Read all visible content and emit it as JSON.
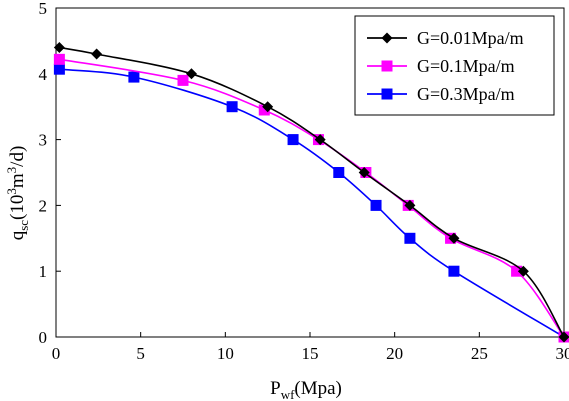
{
  "chart_data": {
    "type": "line",
    "xlabel": "P_wf(Mpa)",
    "ylabel": "q_sc(10^3m^3/d)",
    "xlim": [
      0,
      30
    ],
    "ylim": [
      0,
      5
    ],
    "xticks": [
      "0",
      "5",
      "10",
      "15",
      "20",
      "25",
      "30"
    ],
    "yticks": [
      "0",
      "1",
      "2",
      "3",
      "4",
      "5"
    ],
    "grid": false,
    "legend_position": "top-right",
    "series": [
      {
        "name": "G=0.01Mpa/m",
        "color": "#000000",
        "marker": "diamond",
        "x": [
          0.2,
          2.4,
          8.0,
          12.5,
          15.6,
          18.2,
          20.9,
          23.5,
          27.6,
          30.0
        ],
        "y": [
          4.4,
          4.3,
          4.0,
          3.5,
          3.0,
          2.5,
          2.0,
          1.5,
          1.0,
          0.0
        ]
      },
      {
        "name": "G=0.1Mpa/m",
        "color": "#ff00ff",
        "marker": "square",
        "x": [
          0.2,
          7.5,
          12.3,
          15.5,
          18.3,
          20.8,
          23.3,
          27.2,
          30.0
        ],
        "y": [
          4.22,
          3.9,
          3.45,
          3.0,
          2.5,
          2.0,
          1.5,
          1.0,
          0.0
        ]
      },
      {
        "name": "G=0.3Mpa/m",
        "color": "#0000ff",
        "marker": "square",
        "x": [
          0.2,
          4.6,
          10.4,
          14.0,
          16.7,
          18.9,
          20.9,
          23.5,
          30.0
        ],
        "y": [
          4.07,
          3.95,
          3.5,
          3.0,
          2.5,
          2.0,
          1.5,
          1.0,
          0.0
        ]
      }
    ]
  }
}
